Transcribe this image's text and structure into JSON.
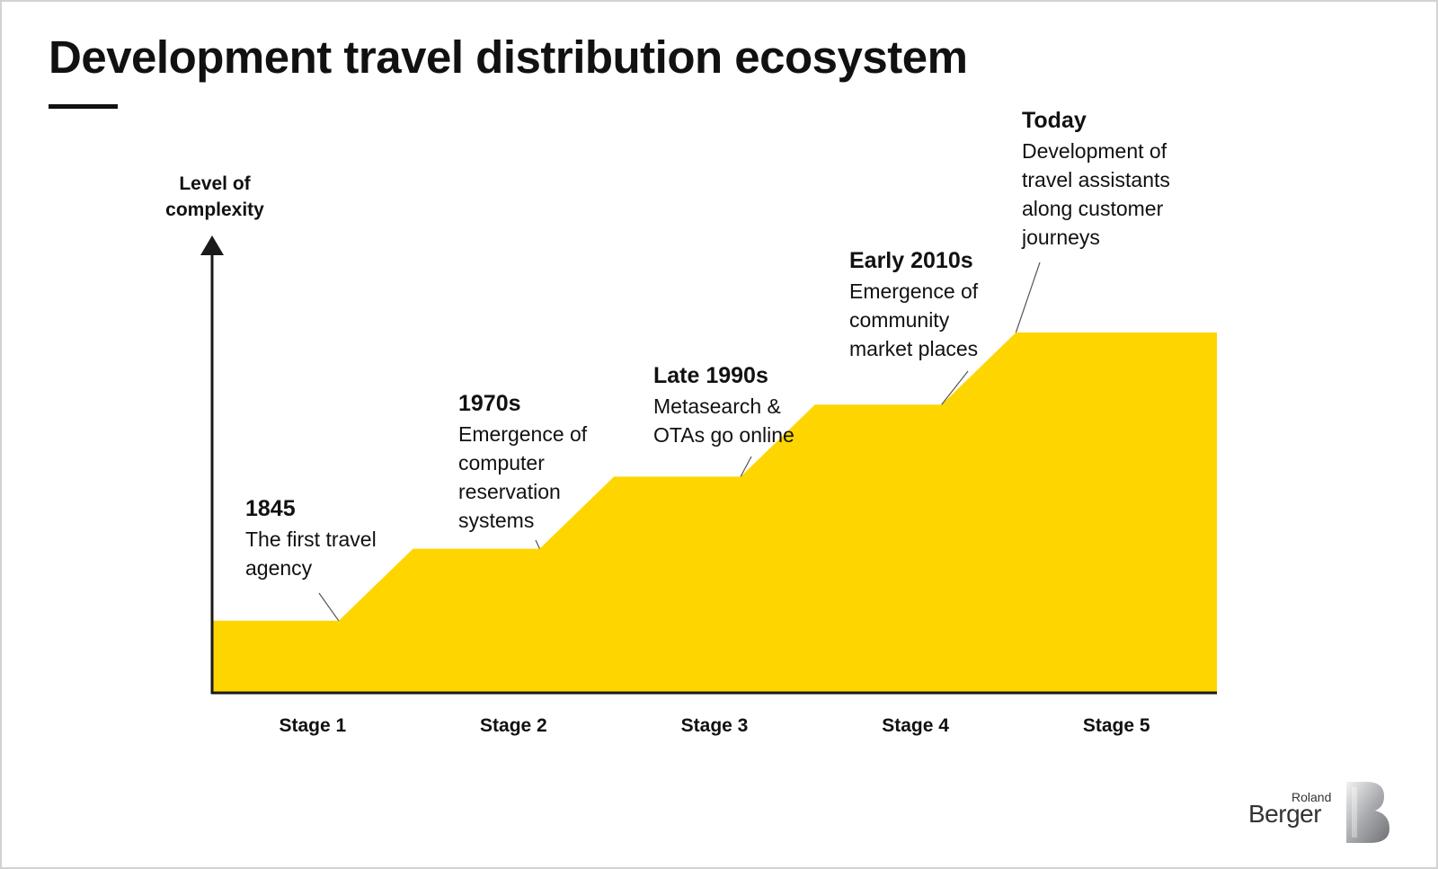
{
  "title": "Development travel distribution ecosystem",
  "chart_data": {
    "type": "area",
    "ylabel": "Level of complexity",
    "categories": [
      "Stage 1",
      "Stage 2",
      "Stage 3",
      "Stage 4",
      "Stage 5"
    ],
    "values": [
      1,
      2,
      3,
      4,
      5
    ],
    "ylim": [
      0,
      5
    ],
    "grid": false,
    "annotations": [
      {
        "stage": "Stage 1",
        "heading": "1845",
        "text": "The first  travel\nagency"
      },
      {
        "stage": "Stage 2",
        "heading": "1970s",
        "text": "Emergence of\ncomputer\nreservation\nsystems"
      },
      {
        "stage": "Stage 3",
        "heading": "Late 1990s",
        "text": "Metasearch &\nOTAs go online"
      },
      {
        "stage": "Stage 4",
        "heading": "Early 2010s",
        "text": "Emergence of\ncommunity\nmarket places"
      },
      {
        "stage": "Stage 5",
        "heading": "Today",
        "text": "Development of\ntravel assistants\nalong customer\njourneys"
      }
    ],
    "colors": {
      "fill": "#FFD500",
      "axis": "#1a1a1a"
    }
  },
  "logo": {
    "line1": "Roland",
    "line2": "Berger"
  }
}
